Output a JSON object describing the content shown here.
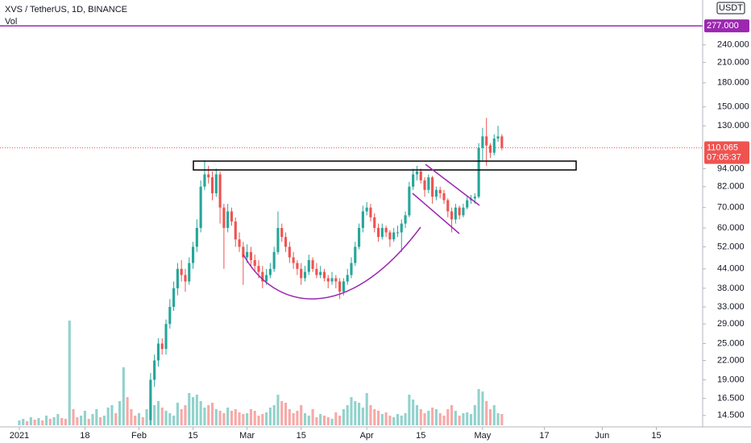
{
  "chart_data": {
    "type": "candlestick",
    "title": "XVS / TetherUS, 1D, BINANCE",
    "volume_label": "Vol",
    "currency": "USDT",
    "log_scale": true,
    "grid": false,
    "up_color": "#26a69a",
    "down_color": "#ef5350",
    "ylim": [
      13.3,
      337
    ],
    "yticks": [
      {
        "value": 240,
        "label": "240.000"
      },
      {
        "value": 210,
        "label": "210.000"
      },
      {
        "value": 180,
        "label": "180.000"
      },
      {
        "value": 150,
        "label": "150.000"
      },
      {
        "value": 130,
        "label": "130.000"
      },
      {
        "value": 94,
        "label": "94.000"
      },
      {
        "value": 82,
        "label": "82.000"
      },
      {
        "value": 70,
        "label": "70.000"
      },
      {
        "value": 60,
        "label": "60.000"
      },
      {
        "value": 52,
        "label": "52.000"
      },
      {
        "value": 44,
        "label": "44.000"
      },
      {
        "value": 38,
        "label": "38.000"
      },
      {
        "value": 33,
        "label": "33.000"
      },
      {
        "value": 29,
        "label": "29.000"
      },
      {
        "value": 25,
        "label": "25.000"
      },
      {
        "value": 22,
        "label": "22.000"
      },
      {
        "value": 19,
        "label": "19.000"
      },
      {
        "value": 16.5,
        "label": "16.500"
      },
      {
        "value": 14.5,
        "label": "14.500"
      }
    ],
    "xlim": [
      "2020-12-27",
      "2021-06-27"
    ],
    "xticks": [
      {
        "value": "2021-01-01",
        "label": "2021"
      },
      {
        "value": "2021-01-18",
        "label": "18"
      },
      {
        "value": "2021-02-01",
        "label": "Feb"
      },
      {
        "value": "2021-02-15",
        "label": "15"
      },
      {
        "value": "2021-03-01",
        "label": "Mar"
      },
      {
        "value": "2021-03-15",
        "label": "15"
      },
      {
        "value": "2021-04-01",
        "label": "Apr"
      },
      {
        "value": "2021-04-15",
        "label": "15"
      },
      {
        "value": "2021-05-01",
        "label": "May"
      },
      {
        "value": "2021-05-17",
        "label": "17"
      },
      {
        "value": "2021-06-01",
        "label": "Jun"
      },
      {
        "value": "2021-06-15",
        "label": "15"
      }
    ],
    "horizontal_line": {
      "value": 277,
      "label": "277.000",
      "color": "#9c27b0"
    },
    "last_price": {
      "value": 110.065,
      "countdown": "07:05:37",
      "color": "#ef5350"
    },
    "x": [
      "2021-01-01",
      "2021-01-02",
      "2021-01-03",
      "2021-01-04",
      "2021-01-05",
      "2021-01-06",
      "2021-01-07",
      "2021-01-08",
      "2021-01-09",
      "2021-01-10",
      "2021-01-11",
      "2021-01-12",
      "2021-01-13",
      "2021-01-14",
      "2021-01-15",
      "2021-01-16",
      "2021-01-17",
      "2021-01-18",
      "2021-01-19",
      "2021-01-20",
      "2021-01-21",
      "2021-01-22",
      "2021-01-23",
      "2021-01-24",
      "2021-01-25",
      "2021-01-26",
      "2021-01-27",
      "2021-01-28",
      "2021-01-29",
      "2021-01-30",
      "2021-01-31",
      "2021-02-01",
      "2021-02-02",
      "2021-02-03",
      "2021-02-04",
      "2021-02-05",
      "2021-02-06",
      "2021-02-07",
      "2021-02-08",
      "2021-02-09",
      "2021-02-10",
      "2021-02-11",
      "2021-02-12",
      "2021-02-13",
      "2021-02-14",
      "2021-02-15",
      "2021-02-16",
      "2021-02-17",
      "2021-02-18",
      "2021-02-19",
      "2021-02-20",
      "2021-02-21",
      "2021-02-22",
      "2021-02-23",
      "2021-02-24",
      "2021-02-25",
      "2021-02-26",
      "2021-02-27",
      "2021-02-28",
      "2021-03-01",
      "2021-03-02",
      "2021-03-03",
      "2021-03-04",
      "2021-03-05",
      "2021-03-06",
      "2021-03-07",
      "2021-03-08",
      "2021-03-09",
      "2021-03-10",
      "2021-03-11",
      "2021-03-12",
      "2021-03-13",
      "2021-03-14",
      "2021-03-15",
      "2021-03-16",
      "2021-03-17",
      "2021-03-18",
      "2021-03-19",
      "2021-03-20",
      "2021-03-21",
      "2021-03-22",
      "2021-03-23",
      "2021-03-24",
      "2021-03-25",
      "2021-03-26",
      "2021-03-27",
      "2021-03-28",
      "2021-03-29",
      "2021-03-30",
      "2021-03-31",
      "2021-04-01",
      "2021-04-02",
      "2021-04-03",
      "2021-04-04",
      "2021-04-05",
      "2021-04-06",
      "2021-04-07",
      "2021-04-08",
      "2021-04-09",
      "2021-04-10",
      "2021-04-11",
      "2021-04-12",
      "2021-04-13",
      "2021-04-14",
      "2021-04-15",
      "2021-04-16",
      "2021-04-17",
      "2021-04-18",
      "2021-04-19",
      "2021-04-20",
      "2021-04-21",
      "2021-04-22",
      "2021-04-23",
      "2021-04-24",
      "2021-04-25",
      "2021-04-26",
      "2021-04-27",
      "2021-04-28",
      "2021-04-29",
      "2021-04-30",
      "2021-05-01",
      "2021-05-02",
      "2021-05-03",
      "2021-05-04",
      "2021-05-05",
      "2021-05-06"
    ],
    "ohlc": [
      null,
      null,
      null,
      null,
      null,
      null,
      null,
      null,
      null,
      null,
      null,
      null,
      null,
      null,
      null,
      null,
      null,
      null,
      null,
      null,
      null,
      null,
      null,
      null,
      null,
      null,
      null,
      null,
      null,
      null,
      null,
      null,
      null,
      null,
      [
        14,
        20,
        13.5,
        19
      ],
      [
        19,
        23,
        18,
        22
      ],
      [
        22,
        26,
        21,
        25
      ],
      [
        25,
        26,
        23,
        24
      ],
      [
        24,
        30,
        23,
        29
      ],
      [
        29,
        35,
        28,
        33
      ],
      [
        33,
        40,
        32,
        38
      ],
      [
        38,
        46,
        36,
        44
      ],
      [
        44,
        47,
        40,
        42
      ],
      [
        42,
        44,
        37,
        40
      ],
      [
        40,
        48,
        39,
        46
      ],
      [
        46,
        54,
        44,
        52
      ],
      [
        52,
        64,
        50,
        60
      ],
      [
        60,
        86,
        58,
        82
      ],
      [
        82,
        100,
        80,
        90
      ],
      [
        90,
        96,
        84,
        88
      ],
      [
        88,
        92,
        74,
        78
      ],
      [
        78,
        94,
        76,
        90
      ],
      [
        90,
        92,
        62,
        70
      ],
      [
        70,
        72,
        44,
        60
      ],
      [
        60,
        72,
        58,
        68
      ],
      [
        68,
        70,
        61,
        63
      ],
      [
        63,
        65,
        52,
        55
      ],
      [
        55,
        58,
        50,
        52
      ],
      [
        52,
        54,
        39,
        48
      ],
      [
        48,
        53,
        46,
        50
      ],
      [
        50,
        52,
        45,
        47
      ],
      [
        47,
        49,
        43,
        45
      ],
      [
        45,
        47,
        41,
        43
      ],
      [
        43,
        45,
        38,
        40
      ],
      [
        40,
        44,
        39,
        42
      ],
      [
        42,
        46,
        41,
        44
      ],
      [
        44,
        52,
        43,
        50
      ],
      [
        50,
        68,
        49,
        60
      ],
      [
        60,
        62,
        54,
        56
      ],
      [
        56,
        58,
        50,
        52
      ],
      [
        52,
        54,
        46,
        48
      ],
      [
        48,
        50,
        44,
        46
      ],
      [
        46,
        47,
        42,
        44
      ],
      [
        44,
        46,
        39,
        41
      ],
      [
        41,
        45,
        40,
        43
      ],
      [
        43,
        49,
        42,
        47
      ],
      [
        47,
        48,
        43,
        44
      ],
      [
        44,
        46,
        41,
        42
      ],
      [
        42,
        45,
        41,
        43
      ],
      [
        43,
        44,
        40,
        41
      ],
      [
        41,
        42,
        38,
        40
      ],
      [
        40,
        43,
        39,
        41
      ],
      [
        41,
        42,
        38,
        40
      ],
      [
        40,
        41,
        35,
        37
      ],
      [
        37,
        41,
        36,
        40
      ],
      [
        40,
        44,
        39,
        42
      ],
      [
        42,
        48,
        41,
        46
      ],
      [
        46,
        54,
        45,
        52
      ],
      [
        52,
        62,
        51,
        60
      ],
      [
        60,
        71,
        58,
        68
      ],
      [
        68,
        73,
        66,
        70
      ],
      [
        70,
        72,
        63,
        65
      ],
      [
        65,
        67,
        58,
        60
      ],
      [
        60,
        62,
        54,
        56
      ],
      [
        56,
        62,
        55,
        60
      ],
      [
        60,
        61,
        56,
        58
      ],
      [
        58,
        59,
        52,
        55
      ],
      [
        55,
        60,
        54,
        58
      ],
      [
        58,
        61,
        56,
        58
      ],
      [
        58,
        64,
        50,
        62
      ],
      [
        62,
        68,
        60,
        66
      ],
      [
        66,
        85,
        65,
        82
      ],
      [
        82,
        94,
        80,
        90
      ],
      [
        90,
        96,
        86,
        92
      ],
      [
        92,
        94,
        84,
        86
      ],
      [
        86,
        88,
        76,
        80
      ],
      [
        80,
        90,
        78,
        88
      ],
      [
        88,
        89,
        72,
        76
      ],
      [
        76,
        82,
        74,
        80
      ],
      [
        80,
        82,
        75,
        78
      ],
      [
        78,
        80,
        72,
        74
      ],
      [
        74,
        75,
        65,
        68
      ],
      [
        68,
        70,
        58,
        64
      ],
      [
        64,
        72,
        62,
        70
      ],
      [
        70,
        71,
        64,
        66
      ],
      [
        66,
        72,
        65,
        70
      ],
      [
        70,
        76,
        69,
        74
      ],
      [
        74,
        77,
        72,
        75
      ],
      [
        75,
        78,
        72,
        76
      ],
      [
        76,
        114,
        75,
        110
      ],
      [
        110,
        128,
        100,
        120
      ],
      [
        120,
        138,
        96,
        112
      ],
      [
        112,
        114,
        102,
        106
      ],
      [
        106,
        122,
        104,
        118
      ],
      [
        118,
        130,
        115,
        120
      ],
      [
        120,
        122,
        108,
        110.065
      ]
    ],
    "volume": [
      6,
      8,
      5,
      10,
      7,
      9,
      6,
      12,
      8,
      10,
      14,
      9,
      8,
      130,
      20,
      10,
      12,
      18,
      8,
      14,
      20,
      10,
      12,
      22,
      25,
      15,
      30,
      72,
      35,
      20,
      12,
      15,
      10,
      20,
      35,
      25,
      30,
      22,
      18,
      15,
      12,
      28,
      20,
      25,
      40,
      35,
      38,
      30,
      22,
      25,
      28,
      20,
      18,
      15,
      22,
      18,
      20,
      16,
      14,
      15,
      20,
      18,
      12,
      14,
      16,
      22,
      25,
      38,
      30,
      28,
      20,
      15,
      18,
      25,
      15,
      12,
      20,
      10,
      14,
      12,
      10,
      8,
      16,
      12,
      20,
      25,
      35,
      30,
      28,
      22,
      40,
      25,
      20,
      18,
      14,
      16,
      12,
      10,
      14,
      12,
      15,
      38,
      32,
      25,
      20,
      15,
      18,
      22,
      20,
      15,
      12,
      20,
      25,
      18,
      12,
      15,
      16,
      14,
      25,
      45,
      42,
      30,
      20,
      25,
      15,
      14
    ]
  }
}
